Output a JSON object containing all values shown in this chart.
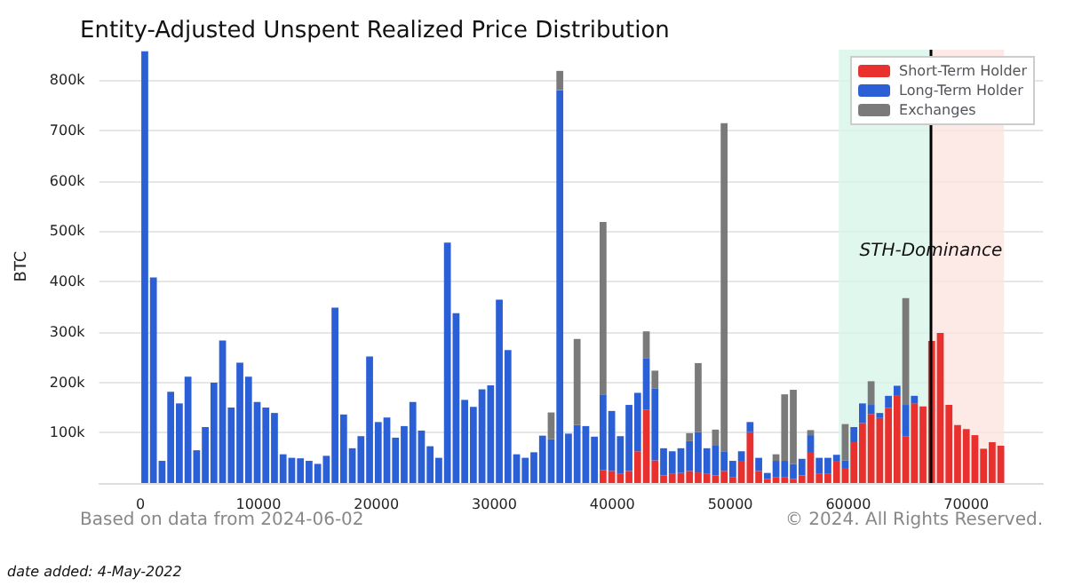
{
  "chart_data": {
    "type": "bar",
    "title": "Entity-Adjusted Unspent Realized Price Distribution",
    "ylabel": "BTC",
    "stacked": true,
    "x": [
      367,
      1100,
      1833,
      2566,
      3299,
      4032,
      4765,
      5498,
      6231,
      6964,
      7697,
      8430,
      9163,
      9896,
      10629,
      11362,
      12095,
      12828,
      13561,
      14294,
      15027,
      15760,
      16493,
      17226,
      17959,
      18692,
      19425,
      20158,
      20891,
      21624,
      22357,
      23090,
      23823,
      24556,
      25289,
      26022,
      26755,
      27488,
      28221,
      28954,
      29687,
      30420,
      31153,
      31886,
      32619,
      33352,
      34085,
      34818,
      35551,
      36284,
      37017,
      37750,
      38483,
      39216,
      39949,
      40682,
      41415,
      42148,
      42881,
      43614,
      44347,
      45080,
      45813,
      46546,
      47279,
      48012,
      48745,
      49478,
      50211,
      50944,
      51677,
      52410,
      53143,
      53876,
      54609,
      55342,
      56075,
      56808,
      57541,
      58274,
      59007,
      59740,
      60473,
      61206,
      61939,
      62672,
      63405,
      64138,
      64871,
      65604,
      66337,
      67070,
      67803,
      68536,
      69269,
      70002,
      70735,
      71468,
      72201,
      72934
    ],
    "series": [
      {
        "name": "Short-Term Holder",
        "color": "#e8302f",
        "values": [
          null,
          null,
          null,
          null,
          null,
          null,
          null,
          null,
          null,
          null,
          null,
          null,
          null,
          null,
          null,
          null,
          null,
          null,
          null,
          null,
          null,
          null,
          null,
          null,
          null,
          null,
          null,
          null,
          null,
          null,
          null,
          null,
          null,
          null,
          null,
          null,
          null,
          null,
          null,
          null,
          null,
          null,
          null,
          null,
          null,
          null,
          null,
          null,
          null,
          null,
          null,
          null,
          null,
          26000,
          24000,
          18000,
          24000,
          63000,
          145000,
          45000,
          15000,
          18000,
          20000,
          24000,
          21000,
          18000,
          15000,
          24000,
          12000,
          44000,
          101000,
          24000,
          8000,
          12000,
          12000,
          8000,
          15000,
          60000,
          18000,
          18000,
          44000,
          30000,
          81000,
          119000,
          137000,
          129000,
          149000,
          173000,
          93000,
          158000,
          152000,
          282000,
          298000,
          155000,
          115000,
          107000,
          95000,
          68000,
          81000,
          74000
        ]
      },
      {
        "name": "Long-Term Holder",
        "color": "#2a5fd6",
        "values": [
          857000,
          408000,
          44000,
          181000,
          158000,
          211000,
          65000,
          111000,
          199000,
          283000,
          150000,
          239000,
          211000,
          161000,
          150000,
          139000,
          57000,
          50000,
          49000,
          44000,
          38000,
          54000,
          348000,
          136000,
          69000,
          93000,
          251000,
          121000,
          130000,
          90000,
          113000,
          161000,
          104000,
          73000,
          50000,
          477000,
          337000,
          165000,
          151000,
          186000,
          194000,
          364000,
          264000,
          57000,
          50000,
          61000,
          94000,
          87000,
          780000,
          98000,
          115000,
          113000,
          92000,
          150000,
          119000,
          75000,
          131000,
          116000,
          103000,
          143000,
          54000,
          45000,
          49000,
          59000,
          80000,
          51000,
          59000,
          39000,
          32000,
          19000,
          20000,
          26000,
          12000,
          32000,
          32000,
          30000,
          33000,
          35000,
          32000,
          32000,
          12000,
          15000,
          30000,
          39000,
          18000,
          10000,
          24000,
          20000,
          62000,
          15000,
          null,
          null,
          null,
          null,
          null,
          null,
          null,
          null,
          null,
          null
        ]
      },
      {
        "name": "Exchanges",
        "color": "#7a7a7a",
        "values": [
          null,
          null,
          null,
          null,
          null,
          null,
          null,
          null,
          null,
          null,
          null,
          null,
          null,
          null,
          null,
          null,
          null,
          null,
          null,
          null,
          null,
          null,
          null,
          null,
          null,
          null,
          null,
          null,
          null,
          null,
          null,
          null,
          null,
          null,
          null,
          null,
          null,
          null,
          null,
          null,
          null,
          null,
          null,
          null,
          null,
          null,
          null,
          53000,
          38000,
          null,
          171000,
          null,
          null,
          342000,
          null,
          null,
          null,
          null,
          53000,
          35000,
          null,
          null,
          null,
          16000,
          137000,
          null,
          32000,
          651000,
          null,
          null,
          null,
          null,
          null,
          13000,
          132000,
          147000,
          null,
          10000,
          null,
          null,
          null,
          72000,
          null,
          null,
          47000,
          null,
          null,
          null,
          212000,
          null,
          null,
          null,
          null,
          null,
          null,
          null,
          null,
          null,
          null,
          null
        ]
      }
    ],
    "xlim": [
      -3500,
      76500
    ],
    "xticks": [
      0,
      10000,
      20000,
      30000,
      40000,
      50000,
      60000,
      70000
    ],
    "ylim": [
      0,
      860000
    ],
    "yticks": [
      {
        "value": 100000,
        "label": "100k"
      },
      {
        "value": 200000,
        "label": "200k"
      },
      {
        "value": 300000,
        "label": "300k"
      },
      {
        "value": 400000,
        "label": "400k"
      },
      {
        "value": 500000,
        "label": "500k"
      },
      {
        "value": 600000,
        "label": "600k"
      },
      {
        "value": 700000,
        "label": "700k"
      },
      {
        "value": 800000,
        "label": "800k"
      }
    ],
    "grid": "y",
    "legend": "top right",
    "ref_lines": [
      {
        "axis": "x",
        "value": 67000,
        "color": "#000000"
      }
    ],
    "bands": [
      {
        "axis": "x",
        "from": 59200,
        "to": 67000,
        "color": "#d8f5ea"
      },
      {
        "axis": "x",
        "from": 67000,
        "to": 73200,
        "color": "#fde3e0"
      }
    ],
    "annotations": [
      {
        "text": "STH-Dominance",
        "x": 67000,
        "y": 460000
      },
      "Based on data from 2024-06-02",
      "© 2024. All Rights Reserved.",
      "date added: 4-May-2022"
    ]
  }
}
